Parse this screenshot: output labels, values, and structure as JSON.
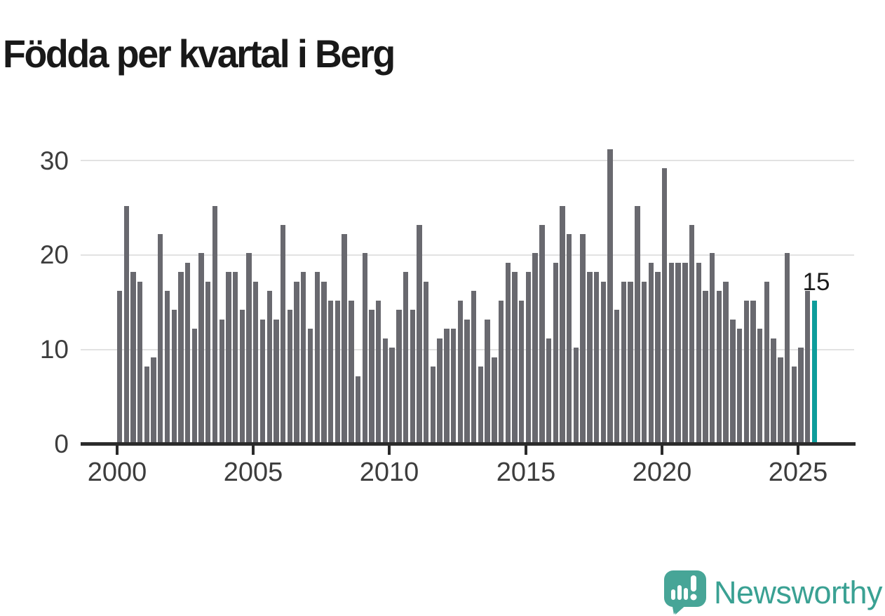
{
  "title": "Födda per kvartal i Berg",
  "annotation": {
    "value_label": "15"
  },
  "logo": {
    "brand": "Newsworthy"
  },
  "colors": {
    "bar": "#69696f",
    "highlight": "#0d9d9b",
    "axis": "#2b2b2b",
    "grid": "#e2e2e2",
    "tick_label": "#3d3d3d",
    "title": "#191919",
    "logo_icon": "#47a597",
    "logo_text": "#3aa193"
  },
  "chart_data": {
    "type": "bar",
    "title": "Födda per kvartal i Berg",
    "xlabel": "",
    "ylabel": "",
    "ylim": [
      0,
      32
    ],
    "grid": "horizontal",
    "legend": "none",
    "y_tick_labels": [
      "30",
      "20",
      "10",
      "0"
    ],
    "x_tick_labels": [
      "2000",
      "2005",
      "2010",
      "2015",
      "2020",
      "2025"
    ],
    "highlight_index": 102,
    "highlight_value": 15,
    "categories": [
      "2000-K1",
      "2000-K2",
      "2000-K3",
      "2000-K4",
      "2001-K1",
      "2001-K2",
      "2001-K3",
      "2001-K4",
      "2002-K1",
      "2002-K2",
      "2002-K3",
      "2002-K4",
      "2003-K1",
      "2003-K2",
      "2003-K3",
      "2003-K4",
      "2004-K1",
      "2004-K2",
      "2004-K3",
      "2004-K4",
      "2005-K1",
      "2005-K2",
      "2005-K3",
      "2005-K4",
      "2006-K1",
      "2006-K2",
      "2006-K3",
      "2006-K4",
      "2007-K1",
      "2007-K2",
      "2007-K3",
      "2007-K4",
      "2008-K1",
      "2008-K2",
      "2008-K3",
      "2008-K4",
      "2009-K1",
      "2009-K2",
      "2009-K3",
      "2009-K4",
      "2010-K1",
      "2010-K2",
      "2010-K3",
      "2010-K4",
      "2011-K1",
      "2011-K2",
      "2011-K3",
      "2011-K4",
      "2012-K1",
      "2012-K2",
      "2012-K3",
      "2012-K4",
      "2013-K1",
      "2013-K2",
      "2013-K3",
      "2013-K4",
      "2014-K1",
      "2014-K2",
      "2014-K3",
      "2014-K4",
      "2015-K1",
      "2015-K2",
      "2015-K3",
      "2015-K4",
      "2016-K1",
      "2016-K2",
      "2016-K3",
      "2016-K4",
      "2017-K1",
      "2017-K2",
      "2017-K3",
      "2017-K4",
      "2018-K1",
      "2018-K2",
      "2018-K3",
      "2018-K4",
      "2019-K1",
      "2019-K2",
      "2019-K3",
      "2019-K4",
      "2020-K1",
      "2020-K2",
      "2020-K3",
      "2020-K4",
      "2021-K1",
      "2021-K2",
      "2021-K3",
      "2021-K4",
      "2022-K1",
      "2022-K2",
      "2022-K3",
      "2022-K4",
      "2023-K1",
      "2023-K2",
      "2023-K3",
      "2023-K4",
      "2024-K1",
      "2024-K2",
      "2024-K3",
      "2024-K4",
      "2025-K1",
      "2025-K2",
      "2025-K3"
    ],
    "values": [
      16,
      25,
      18,
      17,
      8,
      9,
      22,
      16,
      14,
      18,
      19,
      12,
      20,
      17,
      25,
      13,
      18,
      18,
      14,
      20,
      17,
      13,
      16,
      13,
      23,
      14,
      17,
      18,
      12,
      18,
      17,
      15,
      15,
      22,
      15,
      7,
      20,
      14,
      15,
      11,
      10,
      14,
      18,
      14,
      23,
      17,
      8,
      11,
      12,
      12,
      15,
      13,
      16,
      8,
      13,
      9,
      15,
      19,
      18,
      15,
      18,
      20,
      23,
      11,
      19,
      25,
      22,
      10,
      22,
      18,
      18,
      17,
      31,
      14,
      17,
      17,
      25,
      17,
      19,
      18,
      29,
      19,
      19,
      19,
      23,
      19,
      16,
      20,
      16,
      17,
      13,
      12,
      15,
      15,
      12,
      17,
      11,
      9,
      20,
      8,
      10,
      16,
      15
    ]
  }
}
